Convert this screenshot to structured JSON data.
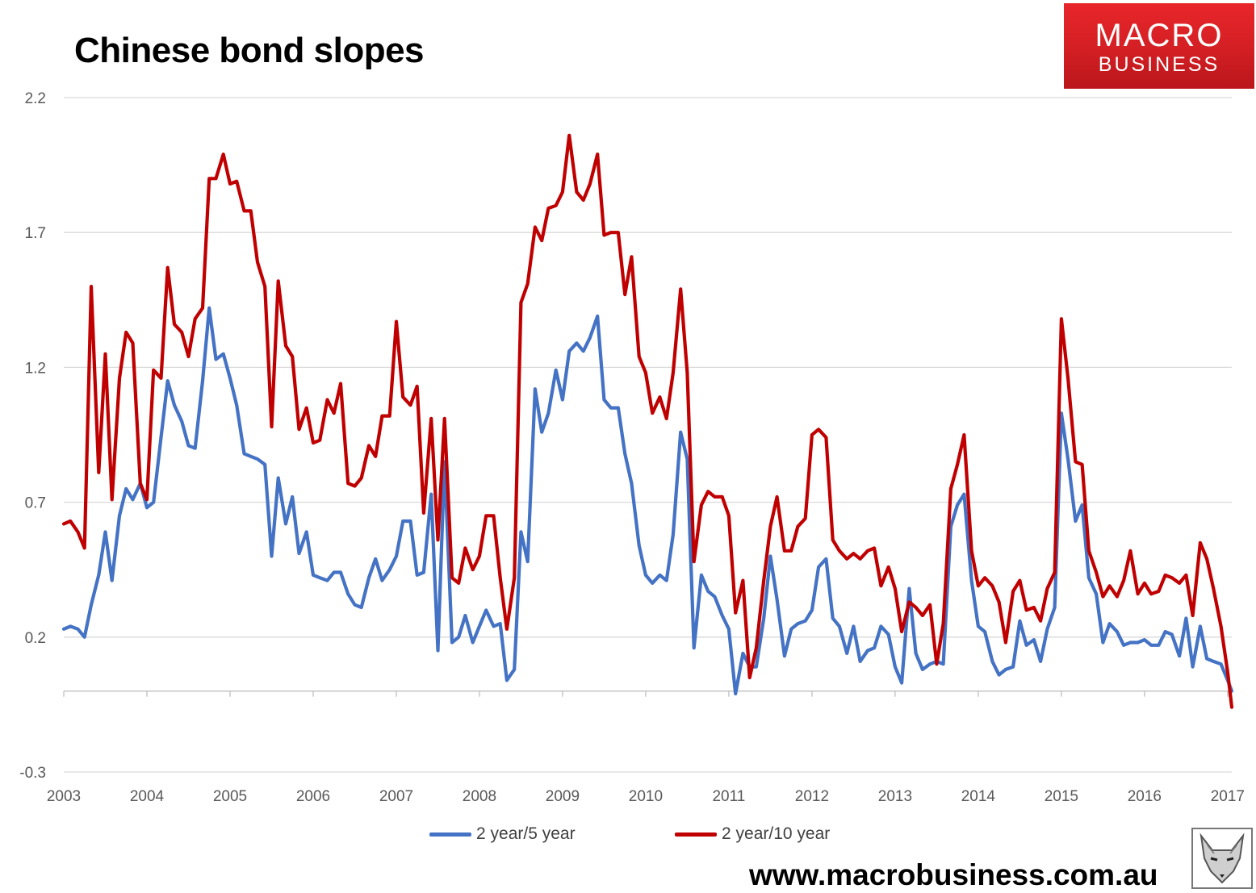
{
  "title": "Chinese bond slopes",
  "logo": {
    "line1": "MACRO",
    "line2": "BUSINESS"
  },
  "website": "www.macrobusiness.com.au",
  "colors": {
    "series_5y": "#4472c4",
    "series_10y": "#c00000",
    "logo_red": "#d8252a",
    "grid": "#d9d9d9"
  },
  "chart_data": {
    "type": "line",
    "title": "Chinese bond slopes",
    "xlabel": "",
    "ylabel": "",
    "ylim": [
      -0.3,
      2.2
    ],
    "yticks": [
      "2.2",
      "1.7",
      "1.2",
      "0.7",
      "0.2",
      "-0.3"
    ],
    "yticks_values": [
      2.2,
      1.7,
      1.2,
      0.7,
      0.2,
      -0.3
    ],
    "xlim": [
      2003,
      2017.05
    ],
    "xticks": [
      "2003",
      "2004",
      "2005",
      "2006",
      "2007",
      "2008",
      "2009",
      "2010",
      "2011",
      "2012",
      "2013",
      "2014",
      "2015",
      "2016",
      "2017"
    ],
    "grid": "horizontal",
    "legend_position": "bottom",
    "series": [
      {
        "name": "2 year/5 year",
        "color": "#4472c4",
        "x": [
          2003.0,
          2003.08,
          2003.17,
          2003.25,
          2003.33,
          2003.42,
          2003.5,
          2003.58,
          2003.67,
          2003.75,
          2003.83,
          2003.92,
          2004.0,
          2004.08,
          2004.17,
          2004.25,
          2004.33,
          2004.42,
          2004.5,
          2004.58,
          2004.67,
          2004.75,
          2004.83,
          2004.92,
          2005.0,
          2005.08,
          2005.17,
          2005.25,
          2005.33,
          2005.42,
          2005.5,
          2005.58,
          2005.67,
          2005.75,
          2005.83,
          2005.92,
          2006.0,
          2006.08,
          2006.17,
          2006.25,
          2006.33,
          2006.42,
          2006.5,
          2006.58,
          2006.67,
          2006.75,
          2006.83,
          2006.92,
          2007.0,
          2007.08,
          2007.17,
          2007.25,
          2007.33,
          2007.42,
          2007.5,
          2007.58,
          2007.67,
          2007.75,
          2007.83,
          2007.92,
          2008.0,
          2008.08,
          2008.17,
          2008.25,
          2008.33,
          2008.42,
          2008.5,
          2008.58,
          2008.67,
          2008.75,
          2008.83,
          2008.92,
          2009.0,
          2009.08,
          2009.17,
          2009.25,
          2009.33,
          2009.42,
          2009.5,
          2009.58,
          2009.67,
          2009.75,
          2009.83,
          2009.92,
          2010.0,
          2010.08,
          2010.17,
          2010.25,
          2010.33,
          2010.42,
          2010.5,
          2010.58,
          2010.67,
          2010.75,
          2010.83,
          2010.92,
          2011.0,
          2011.08,
          2011.17,
          2011.25,
          2011.33,
          2011.42,
          2011.5,
          2011.58,
          2011.67,
          2011.75,
          2011.83,
          2011.92,
          2012.0,
          2012.08,
          2012.17,
          2012.25,
          2012.33,
          2012.42,
          2012.5,
          2012.58,
          2012.67,
          2012.75,
          2012.83,
          2012.92,
          2013.0,
          2013.08,
          2013.17,
          2013.25,
          2013.33,
          2013.42,
          2013.5,
          2013.58,
          2013.67,
          2013.75,
          2013.83,
          2013.92,
          2014.0,
          2014.08,
          2014.17,
          2014.25,
          2014.33,
          2014.42,
          2014.5,
          2014.58,
          2014.67,
          2014.75,
          2014.83,
          2014.92,
          2015.0,
          2015.08,
          2015.17,
          2015.25,
          2015.33,
          2015.42,
          2015.5,
          2015.58,
          2015.67,
          2015.75,
          2015.83,
          2015.92,
          2016.0,
          2016.08,
          2016.17,
          2016.25,
          2016.33,
          2016.42,
          2016.5,
          2016.58,
          2016.67,
          2016.75,
          2016.83,
          2016.92,
          2017.0,
          2017.05
        ],
        "values": [
          0.23,
          0.24,
          0.23,
          0.2,
          0.32,
          0.43,
          0.59,
          0.41,
          0.65,
          0.75,
          0.71,
          0.77,
          0.68,
          0.7,
          0.94,
          1.15,
          1.06,
          1.0,
          0.91,
          0.9,
          1.15,
          1.42,
          1.23,
          1.25,
          1.16,
          1.06,
          0.88,
          0.87,
          0.86,
          0.84,
          0.5,
          0.79,
          0.62,
          0.72,
          0.51,
          0.59,
          0.43,
          0.42,
          0.41,
          0.44,
          0.44,
          0.36,
          0.32,
          0.31,
          0.42,
          0.49,
          0.41,
          0.45,
          0.5,
          0.63,
          0.63,
          0.43,
          0.44,
          0.73,
          0.15,
          0.85,
          0.18,
          0.2,
          0.28,
          0.18,
          0.24,
          0.3,
          0.24,
          0.25,
          0.04,
          0.08,
          0.59,
          0.48,
          1.12,
          0.96,
          1.03,
          1.19,
          1.08,
          1.26,
          1.29,
          1.26,
          1.31,
          1.39,
          1.08,
          1.05,
          1.05,
          0.88,
          0.77,
          0.54,
          0.43,
          0.4,
          0.43,
          0.41,
          0.58,
          0.96,
          0.86,
          0.16,
          0.43,
          0.37,
          0.35,
          0.28,
          0.23,
          -0.01,
          0.14,
          0.09,
          0.09,
          0.27,
          0.5,
          0.34,
          0.13,
          0.23,
          0.25,
          0.26,
          0.3,
          0.46,
          0.49,
          0.27,
          0.24,
          0.14,
          0.24,
          0.11,
          0.15,
          0.16,
          0.24,
          0.21,
          0.09,
          0.03,
          0.38,
          0.14,
          0.08,
          0.1,
          0.11,
          0.1,
          0.61,
          0.69,
          0.73,
          0.41,
          0.24,
          0.22,
          0.11,
          0.06,
          0.08,
          0.09,
          0.26,
          0.17,
          0.19,
          0.11,
          0.23,
          0.31,
          1.03,
          0.86,
          0.63,
          0.69,
          0.42,
          0.36,
          0.18,
          0.25,
          0.22,
          0.17,
          0.18,
          0.18,
          0.19,
          0.17,
          0.17,
          0.22,
          0.21,
          0.13,
          0.27,
          0.09,
          0.24,
          0.12,
          0.11,
          0.1,
          0.04,
          0.0
        ]
      },
      {
        "name": "2 year/10 year",
        "color": "#c00000",
        "x": [
          2003.0,
          2003.08,
          2003.17,
          2003.25,
          2003.33,
          2003.42,
          2003.5,
          2003.58,
          2003.67,
          2003.75,
          2003.83,
          2003.92,
          2004.0,
          2004.08,
          2004.17,
          2004.25,
          2004.33,
          2004.42,
          2004.5,
          2004.58,
          2004.67,
          2004.75,
          2004.83,
          2004.92,
          2005.0,
          2005.08,
          2005.17,
          2005.25,
          2005.33,
          2005.42,
          2005.5,
          2005.58,
          2005.67,
          2005.75,
          2005.83,
          2005.92,
          2006.0,
          2006.08,
          2006.17,
          2006.25,
          2006.33,
          2006.42,
          2006.5,
          2006.58,
          2006.67,
          2006.75,
          2006.83,
          2006.92,
          2007.0,
          2007.08,
          2007.17,
          2007.25,
          2007.33,
          2007.42,
          2007.5,
          2007.58,
          2007.67,
          2007.75,
          2007.83,
          2007.92,
          2008.0,
          2008.08,
          2008.17,
          2008.25,
          2008.33,
          2008.42,
          2008.5,
          2008.58,
          2008.67,
          2008.75,
          2008.83,
          2008.92,
          2009.0,
          2009.08,
          2009.17,
          2009.25,
          2009.33,
          2009.42,
          2009.5,
          2009.58,
          2009.67,
          2009.75,
          2009.83,
          2009.92,
          2010.0,
          2010.08,
          2010.17,
          2010.25,
          2010.33,
          2010.42,
          2010.5,
          2010.58,
          2010.67,
          2010.75,
          2010.83,
          2010.92,
          2011.0,
          2011.08,
          2011.17,
          2011.25,
          2011.33,
          2011.42,
          2011.5,
          2011.58,
          2011.67,
          2011.75,
          2011.83,
          2011.92,
          2012.0,
          2012.08,
          2012.17,
          2012.25,
          2012.33,
          2012.42,
          2012.5,
          2012.58,
          2012.67,
          2012.75,
          2012.83,
          2012.92,
          2013.0,
          2013.08,
          2013.17,
          2013.25,
          2013.33,
          2013.42,
          2013.5,
          2013.58,
          2013.67,
          2013.75,
          2013.83,
          2013.92,
          2014.0,
          2014.08,
          2014.17,
          2014.25,
          2014.33,
          2014.42,
          2014.5,
          2014.58,
          2014.67,
          2014.75,
          2014.83,
          2014.92,
          2015.0,
          2015.08,
          2015.17,
          2015.25,
          2015.33,
          2015.42,
          2015.5,
          2015.58,
          2015.67,
          2015.75,
          2015.83,
          2015.92,
          2016.0,
          2016.08,
          2016.17,
          2016.25,
          2016.33,
          2016.42,
          2016.5,
          2016.58,
          2016.67,
          2016.75,
          2016.83,
          2016.92,
          2017.0,
          2017.05
        ],
        "values": [
          0.62,
          0.63,
          0.59,
          0.53,
          1.5,
          0.81,
          1.25,
          0.71,
          1.16,
          1.33,
          1.29,
          0.77,
          0.71,
          1.19,
          1.16,
          1.57,
          1.36,
          1.33,
          1.24,
          1.38,
          1.42,
          1.9,
          1.9,
          1.99,
          1.88,
          1.89,
          1.78,
          1.78,
          1.59,
          1.5,
          0.98,
          1.52,
          1.28,
          1.24,
          0.97,
          1.05,
          0.92,
          0.93,
          1.08,
          1.03,
          1.14,
          0.77,
          0.76,
          0.79,
          0.91,
          0.87,
          1.02,
          1.02,
          1.37,
          1.09,
          1.06,
          1.13,
          0.66,
          1.01,
          0.56,
          1.01,
          0.42,
          0.4,
          0.53,
          0.45,
          0.5,
          0.65,
          0.65,
          0.42,
          0.23,
          0.42,
          1.44,
          1.51,
          1.72,
          1.67,
          1.79,
          1.8,
          1.85,
          2.06,
          1.85,
          1.82,
          1.88,
          1.99,
          1.69,
          1.7,
          1.7,
          1.47,
          1.61,
          1.24,
          1.18,
          1.03,
          1.09,
          1.01,
          1.18,
          1.49,
          1.18,
          0.48,
          0.69,
          0.74,
          0.72,
          0.72,
          0.65,
          0.29,
          0.41,
          0.05,
          0.16,
          0.41,
          0.61,
          0.72,
          0.52,
          0.52,
          0.61,
          0.64,
          0.95,
          0.97,
          0.94,
          0.56,
          0.52,
          0.49,
          0.51,
          0.49,
          0.52,
          0.53,
          0.39,
          0.46,
          0.38,
          0.22,
          0.33,
          0.31,
          0.28,
          0.32,
          0.1,
          0.25,
          0.75,
          0.84,
          0.95,
          0.52,
          0.39,
          0.42,
          0.39,
          0.33,
          0.18,
          0.37,
          0.41,
          0.3,
          0.31,
          0.26,
          0.38,
          0.44,
          1.38,
          1.16,
          0.85,
          0.84,
          0.52,
          0.44,
          0.35,
          0.39,
          0.35,
          0.41,
          0.52,
          0.36,
          0.4,
          0.36,
          0.37,
          0.43,
          0.42,
          0.4,
          0.43,
          0.28,
          0.55,
          0.49,
          0.38,
          0.24,
          0.07,
          -0.06
        ]
      }
    ]
  }
}
